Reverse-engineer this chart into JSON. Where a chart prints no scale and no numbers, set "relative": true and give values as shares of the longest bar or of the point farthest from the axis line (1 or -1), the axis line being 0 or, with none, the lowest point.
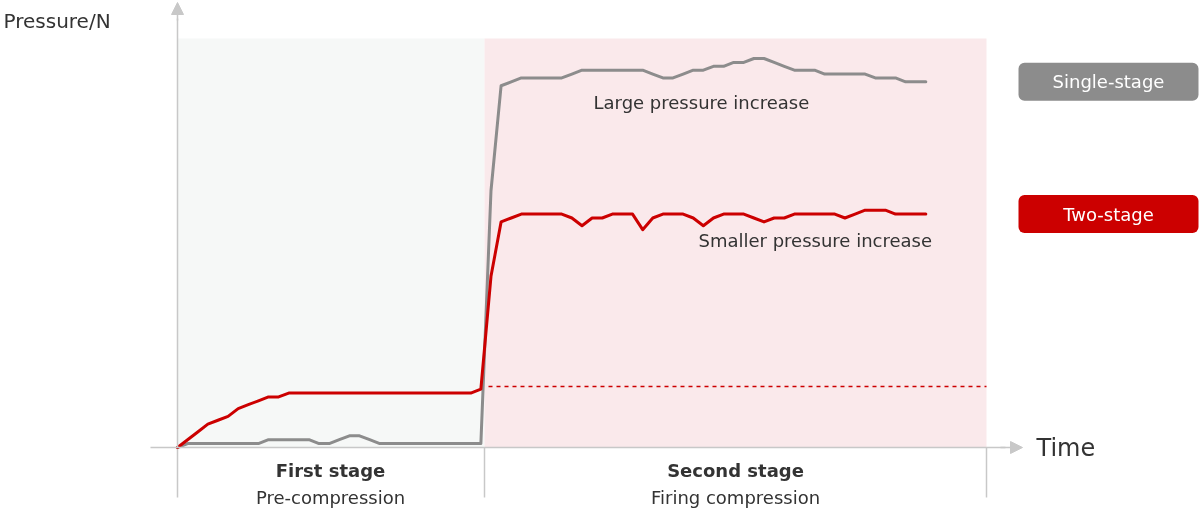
{
  "chart_data": {
    "type": "line",
    "relative": true,
    "ylabel": "Pressure/N",
    "xlabel": "Time",
    "legend": "right",
    "grid": false,
    "categories": [
      null,
      null,
      null,
      null,
      null,
      null,
      null,
      null,
      null,
      null,
      null,
      null,
      null,
      null,
      null,
      null,
      null,
      null,
      null,
      null,
      null,
      null,
      null,
      null,
      null,
      null,
      null,
      null,
      null,
      null,
      null,
      null,
      null,
      null,
      null,
      null,
      null,
      null,
      null,
      null,
      null,
      null,
      null,
      null,
      null,
      null,
      null,
      null,
      null,
      null,
      null,
      null,
      null,
      null,
      null,
      null,
      null,
      null,
      null,
      null,
      null,
      null,
      null,
      null,
      null,
      null,
      null,
      null,
      null,
      null,
      null,
      null,
      null,
      null,
      null,
      null,
      null,
      null,
      null,
      null,
      null
    ],
    "series": [
      {
        "name": "Single-stage",
        "color": "#8c8c8c",
        "values": [
          0,
          0.01,
          0.01,
          0.01,
          0.01,
          0.01,
          0.01,
          0.01,
          0.01,
          0.02,
          0.02,
          0.02,
          0.02,
          0.02,
          0.01,
          0.01,
          0.02,
          0.03,
          0.03,
          0.02,
          0.01,
          0.01,
          0.01,
          0.01,
          0.01,
          0.01,
          0.01,
          0.01,
          0.01,
          0.01,
          0.01,
          0.66,
          0.93,
          0.94,
          0.95,
          0.95,
          0.95,
          0.95,
          0.95,
          0.96,
          0.97,
          0.97,
          0.97,
          0.97,
          0.97,
          0.97,
          0.97,
          0.96,
          0.95,
          0.95,
          0.96,
          0.97,
          0.97,
          0.98,
          0.98,
          0.99,
          0.99,
          1,
          1,
          0.99,
          0.98,
          0.97,
          0.97,
          0.97,
          0.96,
          0.96,
          0.96,
          0.96,
          0.96,
          0.95,
          0.95,
          0.95,
          0.94,
          0.94,
          0.94,
          null,
          null,
          null,
          null,
          null,
          null
        ]
      },
      {
        "name": "Two-stage",
        "color": "#cc0000",
        "values": [
          0,
          0.02,
          0.04,
          0.06,
          0.07,
          0.08,
          0.1,
          0.11,
          0.12,
          0.13,
          0.13,
          0.14,
          0.14,
          0.14,
          0.14,
          0.14,
          0.14,
          0.14,
          0.14,
          0.14,
          0.14,
          0.14,
          0.14,
          0.14,
          0.14,
          0.14,
          0.14,
          0.14,
          0.14,
          0.14,
          0.15,
          0.44,
          0.58,
          0.59,
          0.6,
          0.6,
          0.6,
          0.6,
          0.6,
          0.59,
          0.57,
          0.59,
          0.59,
          0.6,
          0.6,
          0.6,
          0.56,
          0.59,
          0.6,
          0.6,
          0.6,
          0.59,
          0.57,
          0.59,
          0.6,
          0.6,
          0.6,
          0.59,
          0.58,
          0.59,
          0.59,
          0.6,
          0.6,
          0.6,
          0.6,
          0.6,
          0.59,
          0.6,
          0.61,
          0.61,
          0.61,
          0.6,
          0.6,
          0.6,
          0.6,
          null,
          null,
          null,
          null,
          null,
          null
        ]
      }
    ],
    "ref_lines": [
      {
        "axis": "y",
        "value": 0.157,
        "color": "#cc0000",
        "line_style": "dashed"
      }
    ],
    "annotations": [
      "Large pressure increase",
      "Smaller pressure increase",
      "First stage",
      "Pre-compression",
      "Second stage",
      "Firing compression"
    ]
  }
}
